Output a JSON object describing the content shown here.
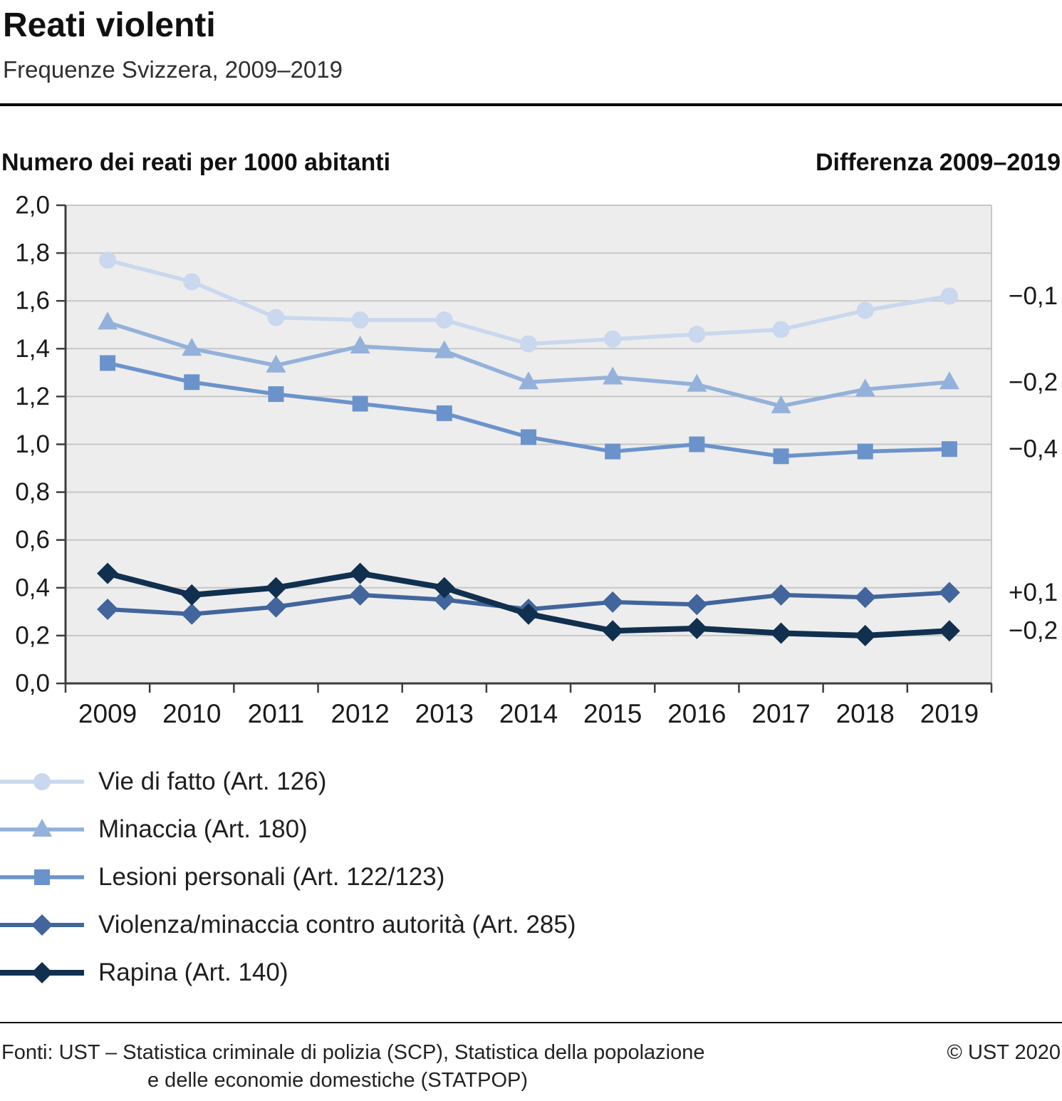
{
  "header": {
    "title": "Reati violenti",
    "subtitle": "Frequenze Svizzera, 2009–2019"
  },
  "panel": {
    "y_axis_title": "Numero dei reati per 1000 abitanti",
    "diff_title": "Differenza 2009–2019"
  },
  "chart_data": {
    "type": "line",
    "x": [
      "2009",
      "2010",
      "2011",
      "2012",
      "2013",
      "2014",
      "2015",
      "2016",
      "2017",
      "2018",
      "2019"
    ],
    "ylim": [
      0,
      2
    ],
    "ytick_step": 0.2,
    "ytick_labels": [
      "0,0",
      "0,2",
      "0,4",
      "0,6",
      "0,8",
      "1,0",
      "1,2",
      "1,4",
      "1,6",
      "1,8",
      "2,0"
    ],
    "grid": true,
    "legend_position": "bottom",
    "plot_bg": "#ededed",
    "series": [
      {
        "name": "Vie di fatto (Art. 126)",
        "marker": "circle",
        "color": "#c9d8ee",
        "values": [
          1.77,
          1.68,
          1.53,
          1.52,
          1.52,
          1.42,
          1.44,
          1.46,
          1.48,
          1.56,
          1.62
        ],
        "diff": "−0,1"
      },
      {
        "name": "Minaccia (Art. 180)",
        "marker": "triangle",
        "color": "#93b1da",
        "values": [
          1.51,
          1.4,
          1.33,
          1.41,
          1.39,
          1.26,
          1.28,
          1.25,
          1.16,
          1.23,
          1.26
        ],
        "diff": "−0,2"
      },
      {
        "name": "Lesioni personali (Art. 122/123)",
        "marker": "square",
        "color": "#6b93cb",
        "values": [
          1.34,
          1.26,
          1.21,
          1.17,
          1.13,
          1.03,
          0.97,
          1.0,
          0.95,
          0.97,
          0.98
        ],
        "diff": "−0,4"
      },
      {
        "name": "Violenza/minaccia contro autorità (Art. 285)",
        "marker": "diamond",
        "color": "#41659c",
        "values": [
          0.31,
          0.29,
          0.32,
          0.37,
          0.35,
          0.31,
          0.34,
          0.33,
          0.37,
          0.36,
          0.38
        ],
        "diff": "+0,1"
      },
      {
        "name": "Rapina (Art. 140)",
        "marker": "diamond",
        "color": "#11304f",
        "values": [
          0.46,
          0.37,
          0.4,
          0.46,
          0.4,
          0.29,
          0.22,
          0.23,
          0.21,
          0.2,
          0.22
        ],
        "diff": "−0,2"
      }
    ]
  },
  "footer": {
    "source_line1": "Fonti: UST – Statistica criminale di polizia (SCP), Statistica della popolazione",
    "source_line2": "e delle economie domestiche (STATPOP)",
    "copyright": "© UST 2020"
  }
}
